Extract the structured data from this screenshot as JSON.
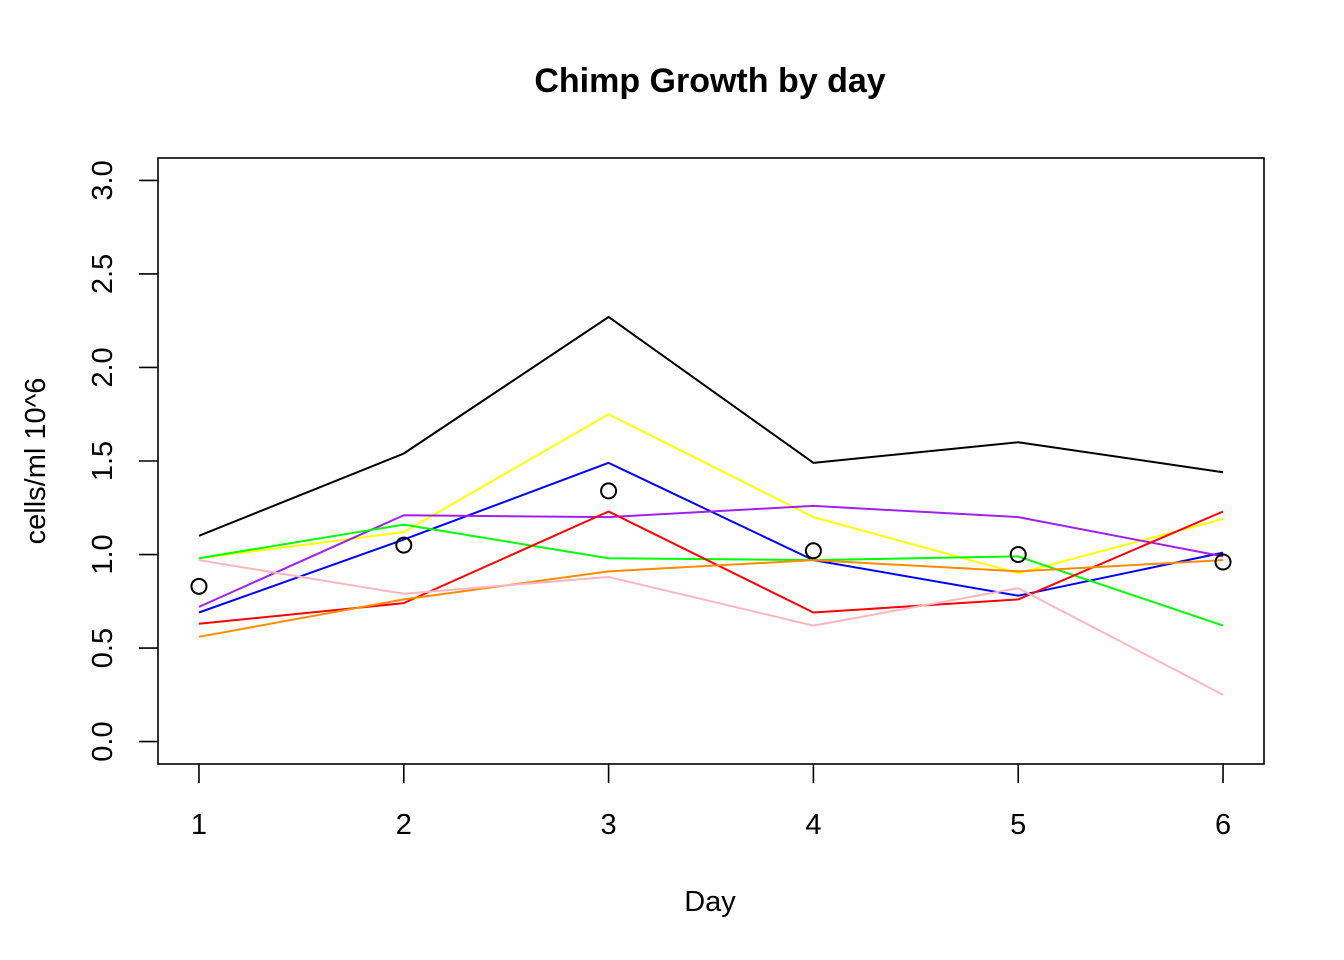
{
  "chart_data": {
    "type": "line",
    "title": "Chimp Growth by day",
    "xlabel": "Day",
    "ylabel": "cells/ml 10^6",
    "x": [
      1,
      2,
      3,
      4,
      5,
      6
    ],
    "xlim": [
      0.8,
      6.2
    ],
    "ylim": [
      -0.12,
      3.12
    ],
    "xticks": [
      "1",
      "2",
      "3",
      "4",
      "5",
      "6"
    ],
    "yticks": [
      "0.0",
      "0.5",
      "1.0",
      "1.5",
      "2.0",
      "2.5",
      "3.0"
    ],
    "grid": false,
    "legend": "none",
    "series": [
      {
        "color": "#000000",
        "values": [
          1.1,
          1.54,
          2.27,
          1.49,
          1.6,
          1.44
        ]
      },
      {
        "color": "#FFFF00",
        "values": [
          0.98,
          1.12,
          1.75,
          1.2,
          0.9,
          1.19
        ]
      },
      {
        "color": "#0000FF",
        "values": [
          0.69,
          1.08,
          1.49,
          0.97,
          0.78,
          1.01
        ]
      },
      {
        "color": "#A020F0",
        "values": [
          0.72,
          1.21,
          1.2,
          1.26,
          1.2,
          0.99
        ]
      },
      {
        "color": "#00FF00",
        "values": [
          0.98,
          1.16,
          0.98,
          0.97,
          0.99,
          0.62
        ]
      },
      {
        "color": "#FF0000",
        "values": [
          0.63,
          0.74,
          1.23,
          0.69,
          0.76,
          1.23
        ]
      },
      {
        "color": "#FF8C00",
        "values": [
          0.56,
          0.76,
          0.91,
          0.97,
          0.91,
          0.97
        ]
      },
      {
        "color": "#FFB6C1",
        "values": [
          0.97,
          0.79,
          0.88,
          0.62,
          0.82,
          0.25
        ]
      }
    ],
    "points": {
      "marker": "open-circle",
      "color": "#000000",
      "values": [
        0.83,
        1.05,
        1.34,
        1.02,
        1.0,
        0.96
      ]
    }
  }
}
